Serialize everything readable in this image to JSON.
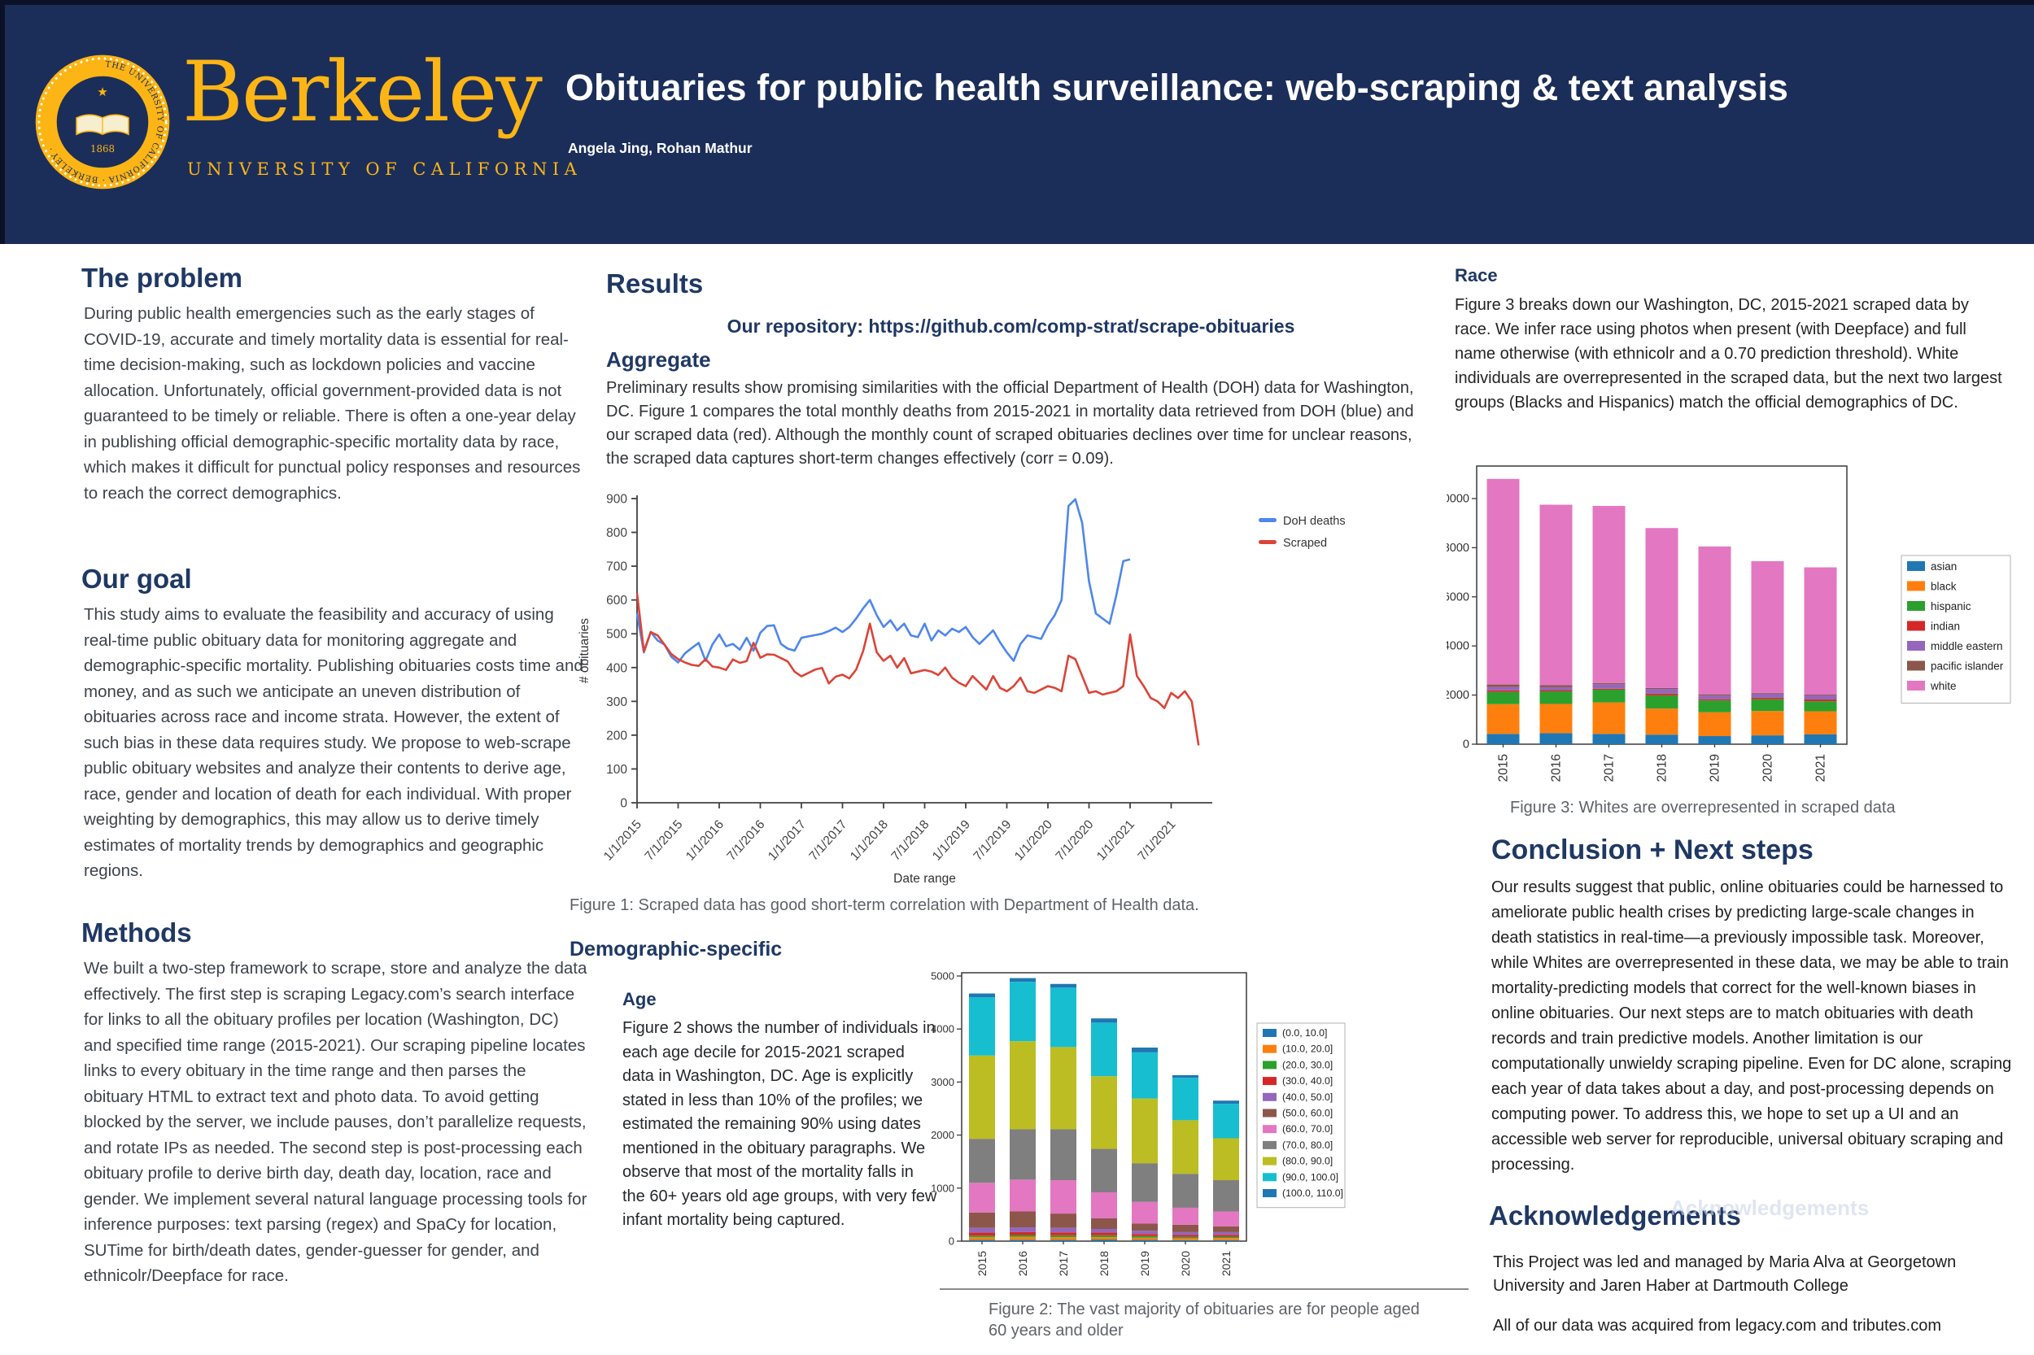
{
  "theme": {
    "header_background": "#1b2e59",
    "gold": "#FDB515",
    "heading_color": "#1f3864"
  },
  "header": {
    "title": "Obituaries for public health surveillance: web-scraping & text analysis",
    "authors": "Angela Jing, Rohan Mathur",
    "logo": {
      "wordmark": "Berkeley",
      "subtitle": "UNIVERSITY OF CALIFORNIA",
      "seal_ring_text": "THE UNIVERSITY OF CALIFORNIA · BERKELEY ·",
      "seal_year": "1868"
    }
  },
  "left_column": {
    "sections": [
      {
        "heading": "The problem",
        "body": "During public health emergencies such as the early stages of COVID-19, accurate and timely mortality data is essential for real-time decision-making, such as lockdown policies and vaccine allocation. Unfortunately, official government-provided data is not guaranteed to be timely or reliable. There is often a one-year delay in publishing official demographic-specific mortality data by race, which makes it difficult for punctual policy responses and resources to reach the correct demographics."
      },
      {
        "heading": "Our goal",
        "body": "This study aims to evaluate the feasibility and accuracy of using real-time public obituary data for monitoring aggregate and demographic-specific mortality. Publishing obituaries costs time and money, and as such we anticipate an uneven distribution of obituaries across race and income strata. However, the extent of such bias in these data requires study. We propose to web-scrape public obituary websites and analyze their contents to derive age, race, gender and location of death for each individual. With proper weighting by demographics, this may allow us to derive timely estimates of mortality trends by demographics and geographic regions."
      },
      {
        "heading": "Methods",
        "body": "We built a two-step framework to scrape, store and analyze the data effectively. The first step is scraping Legacy.com’s search interface for links to all the obituary profiles per location (Washington, DC) and specified time range (2015-2021). Our scraping pipeline locates links to every obituary in the time range and then parses the obituary HTML to extract text and photo data. To avoid getting blocked by the server, we include pauses, don’t parallelize requests, and rotate IPs as needed. The second step is post-processing each obituary profile to derive birth day, death day, location, race and gender. We implement several natural language processing tools for inference purposes: text parsing (regex) and SpaCy for location, SUTime for birth/death dates, gender-guesser for gender, and ethnicolr/Deepface for race."
      }
    ]
  },
  "middle_column": {
    "results_heading": "Results",
    "repository_line": "Our repository: https://github.com/comp-strat/scrape-obituaries",
    "aggregate_heading": "Aggregate",
    "aggregate_body": "Preliminary results show promising similarities with the official Department of Health (DOH) data for Washington, DC. Figure 1 compares the total monthly deaths from 2015-2021 in mortality data retrieved from DOH (blue) and our scraped data (red). Although the monthly count of scraped obituaries declines over time for unclear reasons, the scraped data captures short-term changes effectively (corr = 0.09).",
    "figure1_caption": "Figure 1: Scraped data has good short-term correlation with Department of Health data.",
    "demographic_heading": "Demographic-specific",
    "age_heading": "Age",
    "age_body": "Figure 2 shows the number of individuals in each age decile for 2015-2021 scraped data in Washington, DC. Age is explicitly stated in less than 10% of the profiles; we estimated the remaining 90% using dates mentioned in the obituary paragraphs. We observe that most of the mortality falls in the 60+ years old age groups, with very few infant mortality being captured.",
    "figure2_caption": "Figure 2: The vast majority of obituaries are for people aged 60 years and older"
  },
  "right_column": {
    "race_heading": "Race",
    "race_body": "Figure 3 breaks down our Washington, DC, 2015-2021 scraped data by race. We infer race using photos when present (with Deepface) and full name otherwise (with ethnicolr and a 0.70 prediction threshold). White individuals are overrepresented in the scraped data, but the next two largest groups (Blacks and Hispanics) match the official demographics of DC.",
    "figure3_caption": "Figure 3: Whites are overrepresented in scraped data",
    "conclusion_heading": "Conclusion + Next steps",
    "conclusion_body": "Our results suggest that public, online obituaries could be harnessed to ameliorate public health crises by predicting large-scale changes in death statistics in real-time—a previously impossible task. Moreover, while Whites are overrepresented in these data, we may be able to train mortality-predicting models that correct for the well-known biases in online obituaries. Our next steps are to match obituaries with death records and train predictive models. Another limitation is our computationally unwieldy scraping pipeline. Even for DC alone, scraping each year of data takes about a day, and post-processing depends on computing power. To address this, we hope to set up a UI and an accessible web server for reproducible, universal obituary scraping and processing.",
    "acknowledgements_heading": "Acknowledgements",
    "acknowledgements_ghost": "Acknowledgements",
    "acknowledgements_body_1": "This Project was led and managed by Maria Alva at Georgetown University and Jaren Haber at Dartmouth College",
    "acknowledgements_body_2": "All of our data was acquired from legacy.com and tributes.com"
  },
  "chart_data": [
    {
      "id": "figure1",
      "type": "line",
      "title": "",
      "xlabel": "Date range",
      "ylabel": "# obituaries",
      "ylim": [
        0,
        900
      ],
      "ytick_step": 100,
      "grid": false,
      "legend_position": "top-right",
      "x_total_months": 84,
      "x_tick_labels": [
        "1/1/2015",
        "7/1/2015",
        "1/1/2016",
        "7/1/2016",
        "1/1/2017",
        "7/1/2017",
        "1/1/2018",
        "7/1/2018",
        "1/1/2019",
        "7/1/2019",
        "1/1/2020",
        "7/1/2020",
        "1/1/2021",
        "7/1/2021"
      ],
      "series": [
        {
          "name": "DoH deaths",
          "color": "#4e86ec",
          "values": [
            560,
            445,
            505,
            480,
            468,
            432,
            415,
            442,
            458,
            473,
            420,
            468,
            498,
            463,
            470,
            453,
            488,
            450,
            503,
            523,
            525,
            470,
            456,
            450,
            488,
            492,
            496,
            500,
            508,
            518,
            505,
            520,
            545,
            575,
            600,
            555,
            520,
            540,
            510,
            530,
            495,
            490,
            530,
            480,
            510,
            495,
            515,
            505,
            520,
            490,
            470,
            490,
            510,
            475,
            445,
            420,
            470,
            495,
            490,
            485,
            525,
            555,
            600,
            878,
            898,
            828,
            655,
            560,
            545,
            530,
            615,
            715,
            720
          ]
        },
        {
          "name": "Scraped",
          "color": "#dc4437",
          "values": [
            620,
            448,
            505,
            495,
            468,
            440,
            425,
            415,
            408,
            405,
            425,
            403,
            400,
            393,
            424,
            414,
            419,
            473,
            429,
            439,
            438,
            428,
            418,
            388,
            374,
            384,
            394,
            399,
            353,
            373,
            379,
            368,
            394,
            448,
            530,
            445,
            420,
            435,
            400,
            428,
            383,
            388,
            393,
            388,
            378,
            400,
            370,
            355,
            345,
            375,
            355,
            335,
            375,
            340,
            330,
            345,
            370,
            330,
            325,
            335,
            345,
            340,
            330,
            435,
            425,
            375,
            325,
            330,
            320,
            325,
            330,
            345,
            498,
            375,
            345,
            310,
            300,
            280,
            325,
            310,
            330,
            300,
            170
          ]
        }
      ]
    },
    {
      "id": "figure2",
      "type": "bar-stacked",
      "categories": [
        "2015",
        "2016",
        "2017",
        "2018",
        "2019",
        "2020",
        "2021"
      ],
      "ylim": [
        0,
        5000
      ],
      "ytick_step": 1000,
      "grid": false,
      "legend_position": "right",
      "series": [
        {
          "name": "(0.0, 10.0]",
          "color": "#1f77b4",
          "values": [
            25,
            25,
            25,
            30,
            25,
            20,
            20
          ]
        },
        {
          "name": "(10.0, 20.0]",
          "color": "#ff7f0e",
          "values": [
            50,
            55,
            50,
            45,
            40,
            35,
            40
          ]
        },
        {
          "name": "(20.0, 30.0]",
          "color": "#2ca02c",
          "values": [
            30,
            35,
            35,
            35,
            30,
            25,
            25
          ]
        },
        {
          "name": "(30.0, 40.0]",
          "color": "#d62728",
          "values": [
            55,
            55,
            55,
            50,
            40,
            35,
            35
          ]
        },
        {
          "name": "(40.0, 50.0]",
          "color": "#9467bd",
          "values": [
            90,
            90,
            85,
            70,
            60,
            55,
            50
          ]
        },
        {
          "name": "(50.0, 60.0]",
          "color": "#8c564b",
          "values": [
            290,
            300,
            270,
            200,
            135,
            140,
            110
          ]
        },
        {
          "name": "(60.0, 70.0]",
          "color": "#e377c2",
          "values": [
            560,
            600,
            630,
            490,
            410,
            320,
            280
          ]
        },
        {
          "name": "(70.0, 80.0]",
          "color": "#7f7f7f",
          "values": [
            830,
            950,
            960,
            820,
            730,
            640,
            590
          ]
        },
        {
          "name": "(80.0, 90.0]",
          "color": "#bcbd22",
          "values": [
            1570,
            1660,
            1550,
            1370,
            1220,
            1010,
            790
          ]
        },
        {
          "name": "(90.0, 100.0]",
          "color": "#17becf",
          "values": [
            1100,
            1120,
            1120,
            1010,
            870,
            800,
            650
          ]
        },
        {
          "name": "(100.0, 110.0]",
          "color": "#1f77b4",
          "values": [
            70,
            70,
            70,
            80,
            90,
            50,
            60
          ]
        }
      ]
    },
    {
      "id": "figure3",
      "type": "bar-stacked",
      "categories": [
        "2015",
        "2016",
        "2017",
        "2018",
        "2019",
        "2020",
        "2021"
      ],
      "ylim": [
        0,
        10000
      ],
      "ytick_step": 2000,
      "grid": false,
      "legend_position": "right",
      "series": [
        {
          "name": "asian",
          "color": "#1f77b4",
          "values": [
            420,
            450,
            420,
            390,
            330,
            360,
            400
          ]
        },
        {
          "name": "black",
          "color": "#ff7f0e",
          "values": [
            1210,
            1190,
            1280,
            1060,
            970,
            990,
            940
          ]
        },
        {
          "name": "hispanic",
          "color": "#2ca02c",
          "values": [
            500,
            510,
            520,
            540,
            480,
            480,
            410
          ]
        },
        {
          "name": "indian",
          "color": "#d62728",
          "values": [
            60,
            50,
            40,
            70,
            50,
            60,
            70
          ]
        },
        {
          "name": "middle eastern",
          "color": "#9467bd",
          "values": [
            140,
            120,
            180,
            190,
            150,
            170,
            170
          ]
        },
        {
          "name": "pacific islander",
          "color": "#8c564b",
          "values": [
            100,
            80,
            50,
            40,
            50,
            30,
            30
          ]
        },
        {
          "name": "white",
          "color": "#e377c2",
          "values": [
            8370,
            7350,
            7210,
            6510,
            6020,
            5360,
            5180
          ]
        }
      ]
    }
  ]
}
